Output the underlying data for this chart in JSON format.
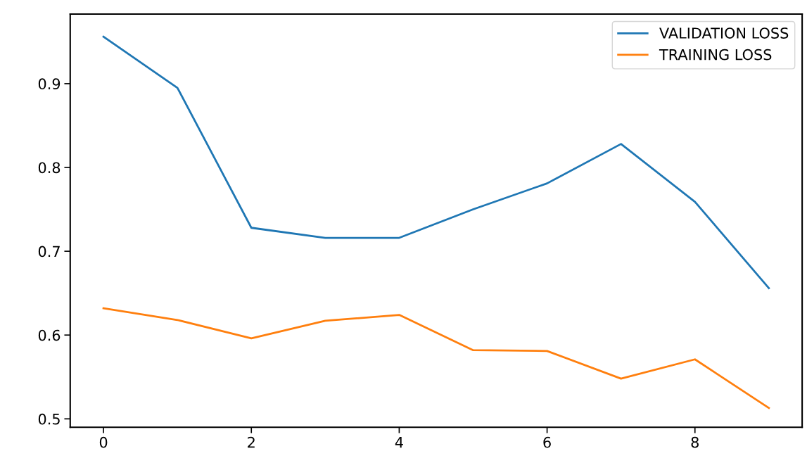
{
  "chart_data": {
    "type": "line",
    "x": [
      0,
      1,
      2,
      3,
      4,
      5,
      6,
      7,
      8,
      9
    ],
    "series": [
      {
        "name": "VALIDATION LOSS",
        "color": "#1f77b4",
        "values": [
          0.956,
          0.895,
          0.728,
          0.716,
          0.716,
          0.75,
          0.781,
          0.828,
          0.759,
          0.656
        ]
      },
      {
        "name": "TRAINING LOSS",
        "color": "#ff7f0e",
        "values": [
          0.632,
          0.618,
          0.596,
          0.617,
          0.624,
          0.582,
          0.581,
          0.548,
          0.571,
          0.513
        ]
      }
    ],
    "xlim": [
      -0.45,
      9.45
    ],
    "xticks": [
      0,
      2,
      4,
      6,
      8
    ],
    "ylim": [
      0.49,
      0.983
    ],
    "yticks": [
      0.5,
      0.6,
      0.7,
      0.8,
      0.9
    ],
    "grid": false,
    "legend": "top right"
  }
}
